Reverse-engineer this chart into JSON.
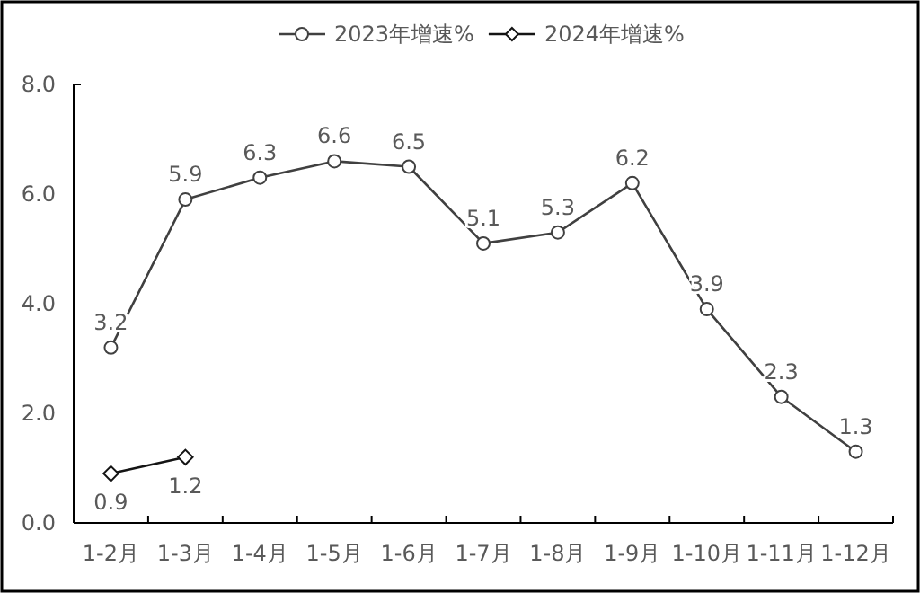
{
  "chart_data": {
    "type": "line",
    "categories": [
      "1-2月",
      "1-3月",
      "1-4月",
      "1-5月",
      "1-6月",
      "1-7月",
      "1-8月",
      "1-9月",
      "1-10月",
      "1-11月",
      "1-12月"
    ],
    "series": [
      {
        "name": "2023年增速%",
        "color": "#404040",
        "marker": "circle",
        "values": [
          3.2,
          5.9,
          6.3,
          6.6,
          6.5,
          5.1,
          5.3,
          6.2,
          3.9,
          2.3,
          1.3
        ]
      },
      {
        "name": "2024年增速%",
        "color": "#141414",
        "marker": "diamond",
        "values": [
          0.9,
          1.2,
          null,
          null,
          null,
          null,
          null,
          null,
          null,
          null,
          null
        ]
      }
    ],
    "ylim": [
      0,
      8
    ],
    "yticks": [
      {
        "value": 0,
        "label": "0.0"
      },
      {
        "value": 2,
        "label": "2.0"
      },
      {
        "value": 4,
        "label": "4.0"
      },
      {
        "value": 6,
        "label": "6.0"
      },
      {
        "value": 8,
        "label": "8.0"
      }
    ],
    "data_labels": true,
    "legend": "top",
    "grid": false
  }
}
